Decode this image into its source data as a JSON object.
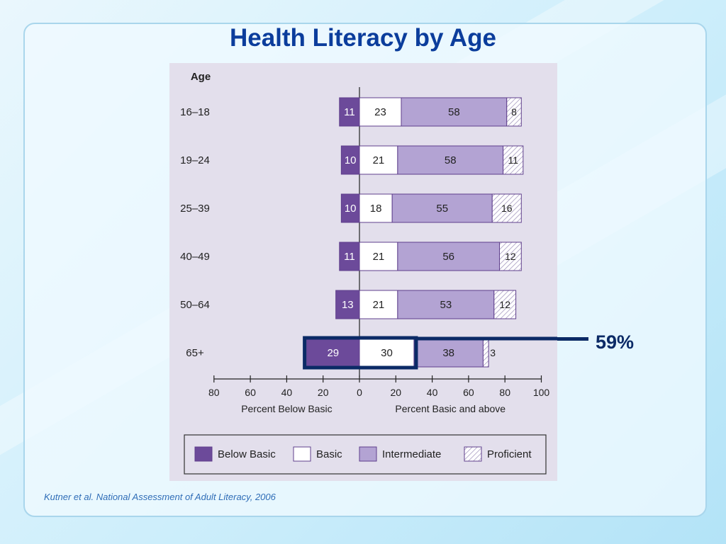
{
  "slide": {
    "title": "Health Literacy by Age",
    "source": "Kutner et al. National Assessment of Adult Literacy, 2006",
    "callout": "59%"
  },
  "colors": {
    "below_basic": "#6c4a9a",
    "basic": "#ffffff",
    "intermediate": "#b3a3d3",
    "proficient": "#ffffff",
    "bar_outline": "#5f3f8c",
    "title": "#0b3d9c",
    "highlight": "#0b2a66",
    "chart_bg": "#e3dfec"
  },
  "chart_data": {
    "type": "bar",
    "orientation": "horizontal-diverging",
    "row_header": "Age",
    "categories": [
      "16–18",
      "19–24",
      "25–39",
      "40–49",
      "50–64",
      "65+"
    ],
    "series": [
      {
        "name": "Below Basic",
        "values": [
          11,
          10,
          10,
          11,
          13,
          29
        ],
        "side": "left"
      },
      {
        "name": "Basic",
        "values": [
          23,
          21,
          18,
          21,
          21,
          30
        ],
        "side": "right"
      },
      {
        "name": "Intermediate",
        "values": [
          58,
          58,
          55,
          56,
          53,
          38
        ],
        "side": "right"
      },
      {
        "name": "Proficient",
        "values": [
          8,
          11,
          16,
          12,
          12,
          3
        ],
        "side": "right",
        "pattern": "hatched"
      }
    ],
    "x_ticks": [
      "80",
      "60",
      "40",
      "20",
      "0",
      "20",
      "40",
      "60",
      "80",
      "100"
    ],
    "xlim": [
      -80,
      100
    ],
    "xlabel_left": "Percent Below Basic",
    "xlabel_right": "Percent Basic and above",
    "legend": [
      "Below Basic",
      "Basic",
      "Intermediate",
      "Proficient"
    ],
    "legend_position": "bottom",
    "highlight": {
      "category": "65+",
      "series": [
        "Below Basic",
        "Basic"
      ],
      "label": "59%"
    }
  }
}
